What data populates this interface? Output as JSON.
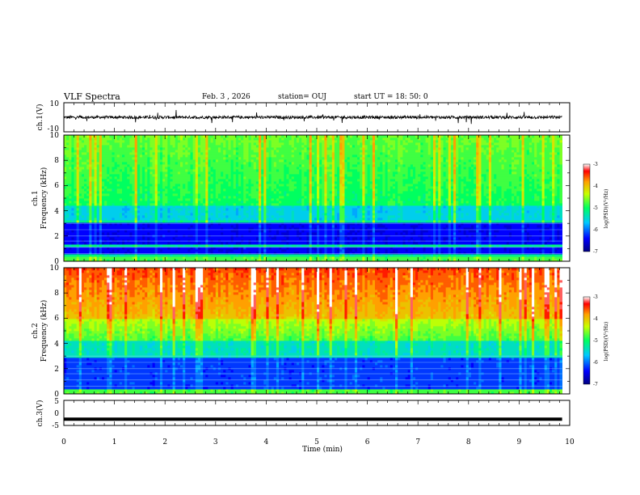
{
  "header": {
    "title": "VLF Spectra",
    "date": "Feb. 3  , 2026",
    "station": "station= OUJ",
    "start": "start  UT  =   18: 50: 0"
  },
  "chart_data": [
    {
      "type": "line",
      "panel": "ch1-waveform",
      "ylabel": "ch.1(V)",
      "ylim": [
        -10,
        10
      ],
      "yticks": [
        "10",
        "-10"
      ],
      "xlim": [
        0,
        10
      ],
      "description_values": {
        "baseline": 0,
        "noise_amplitude": 2
      }
    },
    {
      "type": "heatmap",
      "panel": "ch1-spectrogram",
      "ylabel_line1": "ch.1",
      "ylabel_line2": "Frequency (kHz)",
      "ylim": [
        0,
        10
      ],
      "yticks": [
        "0",
        "2",
        "4",
        "6",
        "8",
        "10"
      ],
      "xlim": [
        0,
        10
      ],
      "colorbar": {
        "label": "log(PSD)(V²/Hz)",
        "range": [
          -7,
          -3
        ],
        "ticks": [
          "-3",
          "-4",
          "-5",
          "-6",
          "-7"
        ]
      }
    },
    {
      "type": "heatmap",
      "panel": "ch2-spectrogram",
      "ylabel_line1": "ch.2",
      "ylabel_line2": "Frequency (kHz)",
      "ylim": [
        0,
        10
      ],
      "yticks": [
        "0",
        "2",
        "4",
        "6",
        "8",
        "10"
      ],
      "xlim": [
        0,
        10
      ],
      "colorbar": {
        "label": "log(PSD)(V²/Hz)",
        "range": [
          -7,
          -3
        ],
        "ticks": [
          "-3",
          "-4",
          "-5",
          "-6",
          "-7"
        ]
      }
    },
    {
      "type": "line",
      "panel": "ch3-waveform",
      "ylabel": "ch.3(V)",
      "ylim": [
        -5,
        5
      ],
      "yticks": [
        "5",
        "0",
        "-5"
      ],
      "xlim": [
        0,
        10
      ],
      "description_values": {
        "level": -2.5
      }
    }
  ],
  "xaxis": {
    "label": "Time (min)",
    "ticks": [
      "0",
      "1",
      "2",
      "3",
      "4",
      "5",
      "6",
      "7",
      "8",
      "9",
      "10"
    ]
  }
}
